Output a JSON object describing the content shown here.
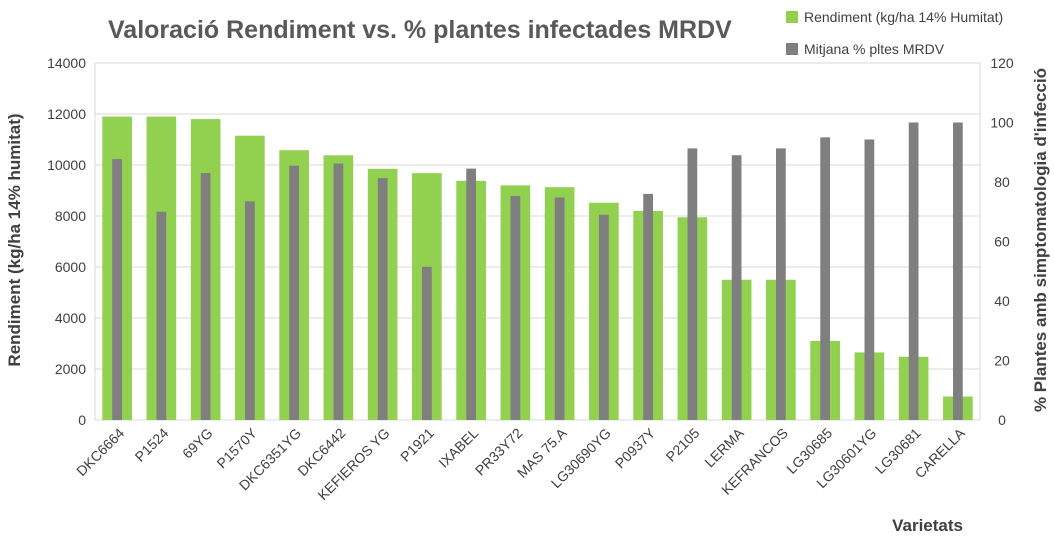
{
  "chart_data": {
    "type": "bar",
    "title": "Valoració Rendiment vs. % plantes infectades MRDV",
    "xlabel": "Varietats",
    "ylabel": "Rendiment (kg/ha 14% humitat)",
    "y2label": "% Plantes amb simptomatologia d'infecció",
    "ylim": [
      0,
      14000
    ],
    "y2lim": [
      0,
      120
    ],
    "yticks": [
      "0",
      "2000",
      "4000",
      "6000",
      "8000",
      "10000",
      "12000",
      "14000"
    ],
    "y2ticks": [
      "0",
      "20",
      "40",
      "60",
      "80",
      "100",
      "120"
    ],
    "grid": true,
    "legend_position": "top-right",
    "categories": [
      "DKC6664",
      "P1524",
      "69YG",
      "P1570Y",
      "DKC6351YG",
      "DKC6442",
      "KEFIEROS YG",
      "P1921",
      "IXABEL",
      "PR33Y72",
      "MAS 75.A",
      "LG30690YG",
      "P0937Y",
      "P2105",
      "LERMA",
      "KEFRANCOS",
      "LG30685",
      "LG30601YG",
      "LG30681",
      "CARELLA"
    ],
    "series": [
      {
        "name": "Rendiment (kg/ha 14% Humitat)",
        "axis": "left",
        "color": "#92d050",
        "values": [
          11900,
          11900,
          11800,
          11150,
          10580,
          10380,
          9850,
          9680,
          9380,
          9200,
          9130,
          8520,
          8200,
          7950,
          5500,
          5500,
          3100,
          2650,
          2480,
          920
        ]
      },
      {
        "name": "Mitjana % pltes MRDV",
        "axis": "right",
        "color": "#7f7f7f",
        "values": [
          87.7,
          70,
          83,
          73.5,
          85.5,
          86.2,
          81.3,
          51.5,
          84.5,
          75.3,
          74.8,
          69,
          76,
          91.3,
          89,
          91.3,
          95,
          94.3,
          100,
          100
        ]
      }
    ]
  }
}
